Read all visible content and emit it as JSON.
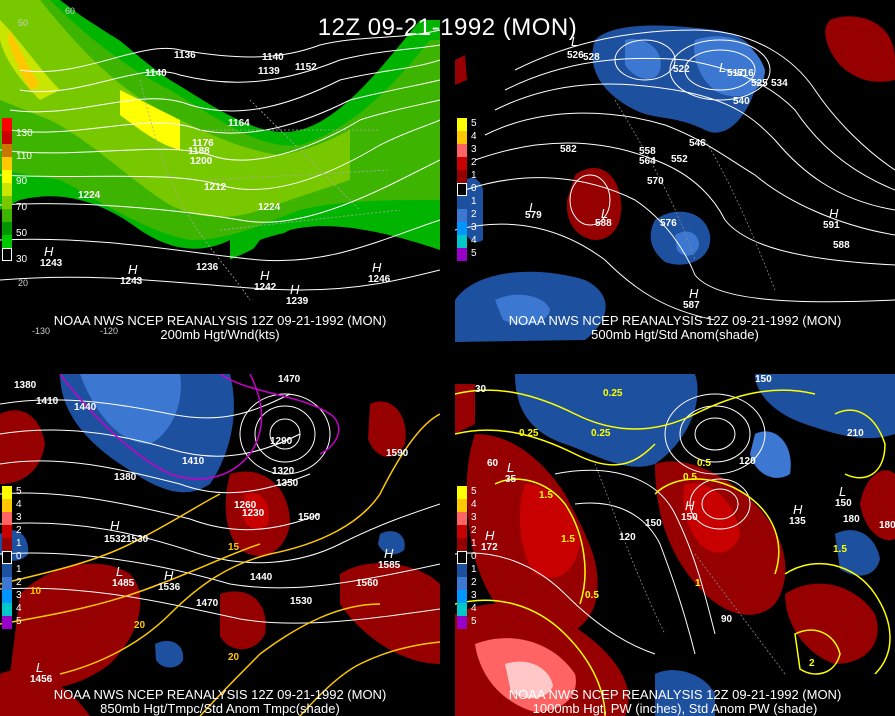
{
  "title": "12Z 09-21-1992 (MON)",
  "panels": [
    {
      "caption1": "NOAA NWS NCEP REANALYSIS 12Z 09-21-1992 (MON)",
      "caption2": "200mb Hgt/Wnd(kts)",
      "legend": [
        {
          "label": "130",
          "color": "#ff0000"
        },
        {
          "label": "",
          "color": "#c80000"
        },
        {
          "label": "110",
          "color": "#c87800"
        },
        {
          "label": "",
          "color": "#ffc800"
        },
        {
          "label": "90",
          "color": "#ffff00"
        },
        {
          "label": "",
          "color": "#c8e600"
        },
        {
          "label": "70",
          "color": "#78c800"
        },
        {
          "label": "",
          "color": "#3cb400"
        },
        {
          "label": "50",
          "color": "#009600"
        },
        {
          "label": "",
          "color": "#00c800"
        },
        {
          "label": "30",
          "color": "#000000"
        }
      ],
      "contour_labels": [
        "1140",
        "1152",
        "1164",
        "1176",
        "1188",
        "1200",
        "1212",
        "1224",
        "1224",
        "1236",
        "1140",
        "1136",
        "1139"
      ],
      "highs": [
        {
          "v": "1243"
        },
        {
          "v": "1243"
        },
        {
          "v": "1242"
        },
        {
          "v": "1246"
        },
        {
          "v": "1239"
        }
      ],
      "ticks": [
        "-130",
        "-120",
        "20",
        "50",
        "60"
      ]
    },
    {
      "caption1": "NOAA NWS NCEP REANALYSIS 12Z 09-21-1992 (MON)",
      "caption2": "500mb Hgt/Std Anom(shade)",
      "legend": [
        {
          "label": "5",
          "color": "#ffff00"
        },
        {
          "label": "4",
          "color": "#ffc800"
        },
        {
          "label": "3",
          "color": "#ff6464"
        },
        {
          "label": "2",
          "color": "#c80000"
        },
        {
          "label": "1",
          "color": "#960000"
        },
        {
          "label": "0",
          "color": "#000000"
        },
        {
          "label": "1",
          "color": "#1e50a0"
        },
        {
          "label": "2",
          "color": "#3c78d2"
        },
        {
          "label": "3",
          "color": "#0096ff"
        },
        {
          "label": "4",
          "color": "#00c8c8"
        },
        {
          "label": "5",
          "color": "#9600c8"
        }
      ],
      "contour_labels": [
        "528",
        "522",
        "516",
        "525",
        "534",
        "540",
        "546",
        "552",
        "558",
        "564",
        "570",
        "576",
        "582",
        "588"
      ],
      "lows": [
        {
          "v": "526"
        },
        {
          "v": "517"
        },
        {
          "v": "579"
        },
        {
          "v": "588"
        }
      ],
      "highs": [
        {
          "v": "591"
        },
        {
          "v": "587"
        }
      ]
    },
    {
      "caption1": "NOAA NWS NCEP REANALYSIS 12Z 09-21-1992 (MON)",
      "caption2": "850mb Hgt/Tmpc/Std Anom Tmpc(shade)",
      "legend": [
        {
          "label": "5",
          "color": "#ffff00"
        },
        {
          "label": "4",
          "color": "#ffc800"
        },
        {
          "label": "3",
          "color": "#ff6464"
        },
        {
          "label": "2",
          "color": "#c80000"
        },
        {
          "label": "1",
          "color": "#960000"
        },
        {
          "label": "0",
          "color": "#000000"
        },
        {
          "label": "1",
          "color": "#1e50a0"
        },
        {
          "label": "2",
          "color": "#3c78d2"
        },
        {
          "label": "3",
          "color": "#0096ff"
        },
        {
          "label": "4",
          "color": "#00c8c8"
        },
        {
          "label": "5",
          "color": "#9600c8"
        }
      ],
      "contour_labels": [
        "1380",
        "1410",
        "1440",
        "1470",
        "1410",
        "1380",
        "1320",
        "1290",
        "1350",
        "1500",
        "1530",
        "1440",
        "1470",
        "1530",
        "1560",
        "1590",
        "1260",
        "1230"
      ],
      "highs": [
        {
          "v": "1532"
        },
        {
          "v": "1536"
        },
        {
          "v": "1585"
        }
      ],
      "lows": [
        {
          "v": "1485"
        },
        {
          "v": "1456"
        }
      ],
      "temp_labels": [
        "10",
        "15",
        "20",
        "20"
      ]
    },
    {
      "caption1": "NOAA NWS NCEP REANALYSIS 12Z 09-21-1992 (MON)",
      "caption2": "1000mb Hgt, PW (inches), Std Anom PW (shade)",
      "legend": [
        {
          "label": "5",
          "color": "#ffff00"
        },
        {
          "label": "4",
          "color": "#ffc800"
        },
        {
          "label": "3",
          "color": "#ff6464"
        },
        {
          "label": "2",
          "color": "#c80000"
        },
        {
          "label": "1",
          "color": "#960000"
        },
        {
          "label": "0",
          "color": "#000000"
        },
        {
          "label": "1",
          "color": "#1e50a0"
        },
        {
          "label": "2",
          "color": "#3c78d2"
        },
        {
          "label": "3",
          "color": "#0096ff"
        },
        {
          "label": "4",
          "color": "#00c8c8"
        },
        {
          "label": "5",
          "color": "#9600c8"
        }
      ],
      "contour_labels": [
        "0.25",
        "0.25",
        "0.25",
        "0.5",
        "0.5",
        "1.5",
        "1.5",
        "1.5",
        "2",
        "0.5",
        "1",
        "60",
        "90",
        "120",
        "150",
        "180",
        "210",
        "120",
        "150",
        "180",
        "30"
      ],
      "highs": [
        {
          "v": "172"
        },
        {
          "v": "135"
        },
        {
          "v": "150"
        }
      ],
      "lows": [
        {
          "v": "35"
        },
        {
          "v": "150"
        }
      ]
    }
  ]
}
